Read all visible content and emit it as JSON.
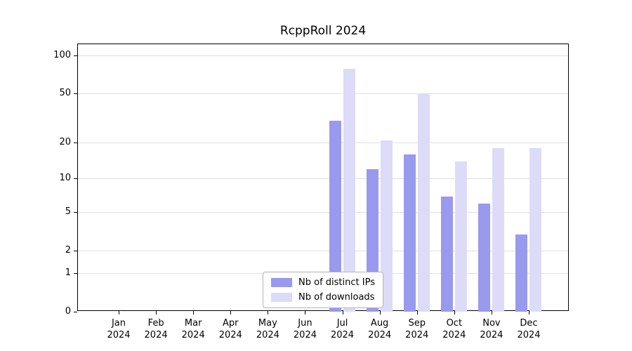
{
  "chart_data": {
    "type": "bar",
    "title": "RcppRoll 2024",
    "categories": [
      "Jan",
      "Feb",
      "Mar",
      "Apr",
      "May",
      "Jun",
      "Jul",
      "Aug",
      "Sep",
      "Oct",
      "Nov",
      "Dec"
    ],
    "year_label": "2024",
    "yticks": [
      0,
      1,
      2,
      5,
      10,
      20,
      50,
      100
    ],
    "ylim": [
      0,
      100
    ],
    "scale": "log1p",
    "grid": true,
    "grid_color": "#e0e0e0",
    "background_color": "#ffffff",
    "legend_position": "bottom-center",
    "series": [
      {
        "name": "Nb of distinct IPs",
        "color": "#9999ee",
        "values": [
          0,
          0,
          0,
          0,
          0,
          0,
          30,
          12,
          16,
          7,
          6,
          3
        ]
      },
      {
        "name": "Nb of downloads",
        "color": "#dcdcf8",
        "values": [
          0,
          0,
          0,
          0,
          0,
          0,
          78,
          21,
          50,
          14,
          18,
          18
        ]
      }
    ]
  }
}
